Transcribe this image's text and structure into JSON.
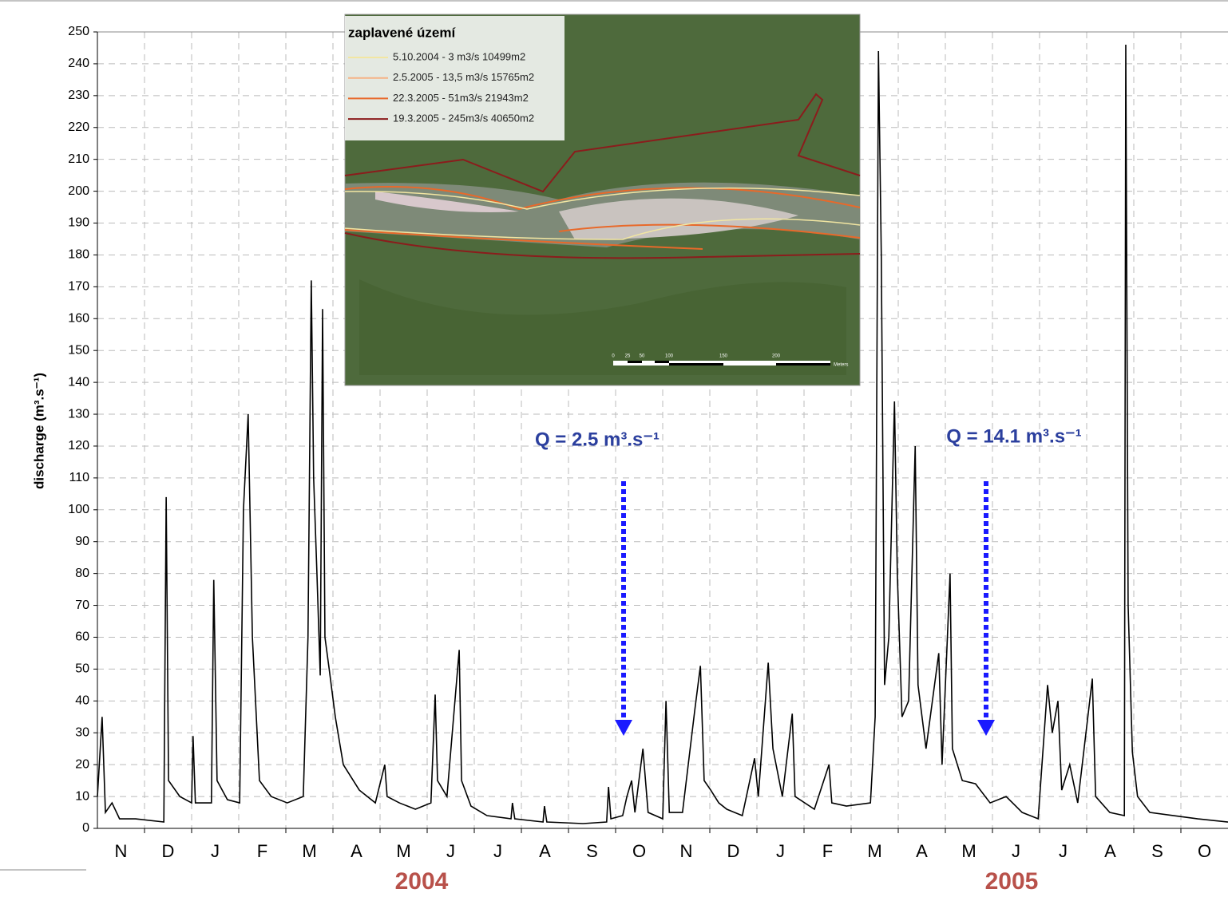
{
  "chart_data": {
    "type": "line",
    "y_label": "discharge (m³.s⁻¹)",
    "categories": [
      "N",
      "D",
      "J",
      "F",
      "M",
      "A",
      "M",
      "J",
      "J",
      "A",
      "S",
      "O",
      "N",
      "D",
      "J",
      "F",
      "M",
      "A",
      "M",
      "J",
      "J",
      "A",
      "S",
      "O"
    ],
    "x": [
      0,
      0.1,
      0.17,
      0.31,
      0.47,
      0.81,
      1.41,
      1.46,
      1.51,
      1.75,
      2.0,
      2.03,
      2.08,
      2.42,
      2.47,
      2.54,
      2.76,
      3.02,
      3.1,
      3.2,
      3.29,
      3.44,
      3.69,
      4.03,
      4.37,
      4.47,
      4.54,
      4.59,
      4.66,
      4.73,
      4.78,
      4.83,
      4.92,
      5.05,
      5.22,
      5.56,
      5.9,
      6.1,
      6.15,
      6.41,
      6.75,
      7.08,
      7.17,
      7.22,
      7.42,
      7.68,
      7.73,
      7.93,
      8.27,
      8.78,
      8.81,
      8.86,
      9.46,
      9.49,
      9.54,
      10.31,
      10.81,
      10.85,
      10.9,
      11.15,
      11.24,
      11.34,
      11.41,
      11.58,
      11.69,
      12.0,
      12.07,
      12.14,
      12.42,
      12.68,
      12.8,
      12.88,
      13.02,
      13.19,
      13.36,
      13.69,
      13.95,
      14.03,
      14.24,
      14.34,
      14.54,
      14.75,
      14.81,
      15.22,
      15.53,
      15.59,
      15.9,
      16.41,
      16.51,
      16.58,
      16.64,
      16.71,
      16.8,
      16.92,
      16.98,
      17.08,
      17.22,
      17.36,
      17.42,
      17.59,
      17.86,
      17.93,
      18.1,
      18.15,
      18.36,
      18.64,
      18.95,
      19.29,
      19.63,
      19.97,
      20.17,
      20.27,
      20.39,
      20.47,
      20.64,
      20.81,
      21.12,
      21.19,
      21.49,
      21.8,
      21.83,
      21.88,
      21.97,
      22.08,
      22.34,
      22.85,
      23.36,
      24.0
    ],
    "series": [
      {
        "color": "#000000",
        "values": [
          10,
          35,
          5,
          8,
          3,
          3,
          2,
          104,
          15,
          10,
          8,
          29,
          8,
          8,
          78,
          15,
          9,
          8,
          100,
          130,
          60,
          15,
          10,
          8,
          10,
          60,
          172,
          110,
          80,
          48,
          163,
          60,
          50,
          35,
          20,
          12,
          8,
          20,
          10,
          8,
          6,
          8,
          42,
          15,
          10,
          56,
          15,
          7,
          4,
          3,
          8,
          3,
          2,
          7,
          2,
          1.5,
          2,
          13,
          3,
          4,
          10,
          15,
          5,
          25,
          5,
          3,
          40,
          5,
          5,
          37,
          51,
          15,
          12,
          8,
          6,
          4,
          22,
          10,
          52,
          25,
          10,
          36,
          10,
          6,
          20,
          8,
          7,
          8,
          35,
          244,
          180,
          45,
          60,
          134,
          80,
          35,
          40,
          120,
          45,
          25,
          55,
          20,
          80,
          25,
          15,
          14,
          8,
          10,
          5,
          3,
          45,
          30,
          40,
          12,
          20,
          8,
          47,
          10,
          5,
          4,
          246,
          70,
          24,
          10,
          5,
          4,
          3,
          2
        ]
      }
    ],
    "xlim": [
      0,
      24
    ],
    "ylim": [
      0,
      250
    ],
    "yticks": [
      0,
      10,
      20,
      30,
      40,
      50,
      60,
      70,
      80,
      90,
      100,
      110,
      120,
      130,
      140,
      150,
      160,
      170,
      180,
      190,
      200,
      210,
      220,
      230,
      240,
      250
    ],
    "grid": true,
    "annotations": [
      "Q = 2.5 m³.s⁻¹",
      "Q = 14.1 m³.s⁻¹"
    ],
    "year_labels": [
      "2004",
      "2005"
    ]
  },
  "inset": {
    "title": "zaplavené území",
    "legend": [
      {
        "label": "5.10.2004 - 3 m3/s 10499m2",
        "color": "#f2e6a2"
      },
      {
        "label": "2.5.2005 - 13,5 m3/s 15765m2",
        "color": "#f5b285"
      },
      {
        "label": "22.3.2005 - 51m3/s 21943m2",
        "color": "#e8692a"
      },
      {
        "label": "19.3.2005 - 245m3/s 40650m2",
        "color": "#8b1c1c"
      }
    ],
    "scale_labels": [
      "0",
      "25",
      "50",
      "100",
      "150",
      "200",
      "Meters"
    ]
  }
}
